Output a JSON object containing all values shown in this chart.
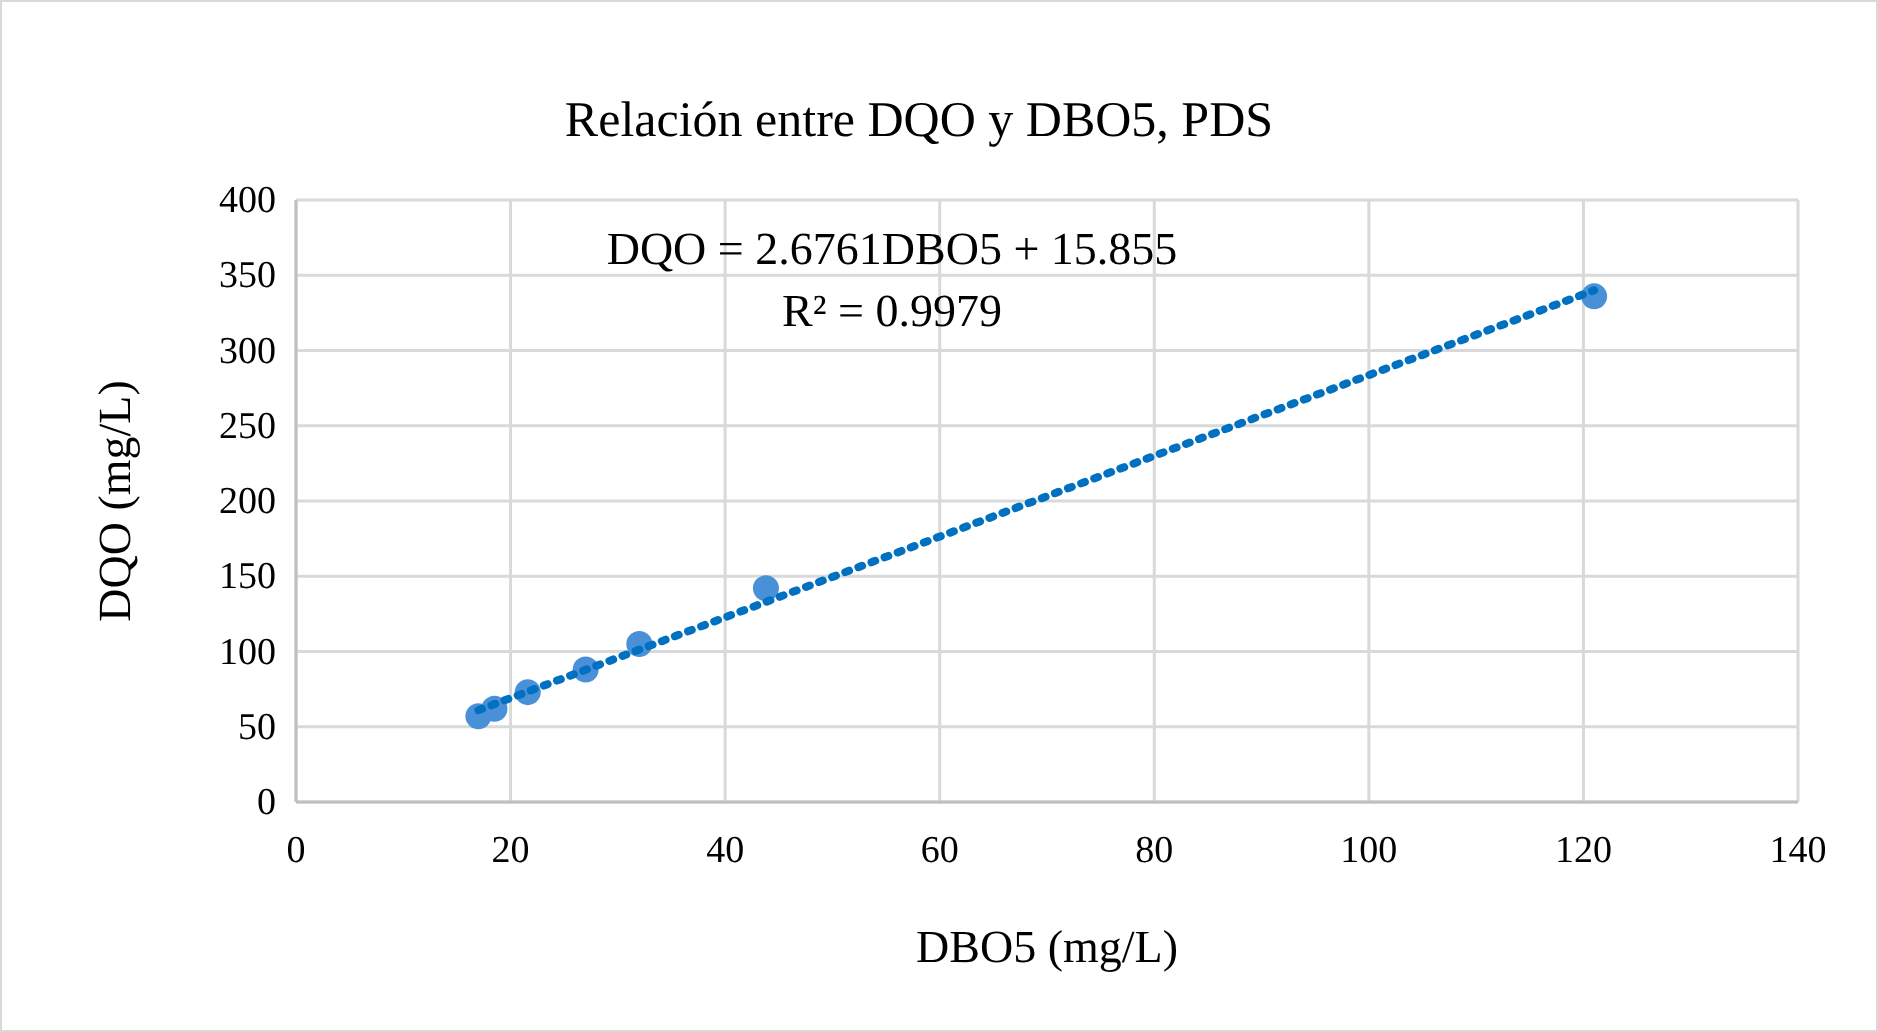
{
  "chart_data": {
    "type": "scatter",
    "title": "Relación entre DQO y DBO5, PDS",
    "xlabel": "DBO5 (mg/L)",
    "ylabel": "DQO (mg/L)",
    "xlim": [
      0,
      140
    ],
    "xticks": [
      0,
      20,
      40,
      60,
      80,
      100,
      120,
      140
    ],
    "ylim": [
      0,
      400
    ],
    "yticks": [
      0,
      50,
      100,
      150,
      200,
      250,
      300,
      350,
      400
    ],
    "grid": true,
    "marker": "circle",
    "series": [
      {
        "type": "scatter",
        "color": "#4a90d9",
        "x": [
          17,
          18.5,
          21.6,
          27,
          32,
          43.8,
          121
        ],
        "values": [
          57,
          62,
          73,
          88,
          105,
          142,
          336
        ]
      },
      {
        "type": "line",
        "color": "#0070c0",
        "line_style": "dotted",
        "marker": "none",
        "x": [
          17,
          121
        ],
        "values": [
          61,
          340
        ]
      }
    ],
    "annotations": [
      "DQO = 2.6761DBO5 + 15.855",
      "R² = 0.9979"
    ]
  }
}
